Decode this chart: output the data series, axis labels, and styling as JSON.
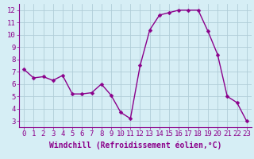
{
  "x": [
    0,
    1,
    2,
    3,
    4,
    5,
    6,
    7,
    8,
    9,
    10,
    11,
    12,
    13,
    14,
    15,
    16,
    17,
    18,
    19,
    20,
    21,
    22,
    23
  ],
  "y": [
    7.2,
    6.5,
    6.6,
    6.3,
    6.7,
    5.2,
    5.2,
    5.3,
    6.0,
    5.1,
    3.7,
    3.2,
    7.5,
    10.4,
    11.6,
    11.8,
    12.0,
    12.0,
    12.0,
    10.3,
    8.4,
    5.0,
    4.5,
    3.0
  ],
  "line_color": "#8b008b",
  "marker_color": "#8b008b",
  "bg_color": "#d6eef5",
  "grid_color": "#b0cdd8",
  "xlabel": "Windchill (Refroidissement éolien,°C)",
  "xlim": [
    -0.5,
    23.5
  ],
  "ylim": [
    2.5,
    12.5
  ],
  "xticks": [
    0,
    1,
    2,
    3,
    4,
    5,
    6,
    7,
    8,
    9,
    10,
    11,
    12,
    13,
    14,
    15,
    16,
    17,
    18,
    19,
    20,
    21,
    22,
    23
  ],
  "yticks": [
    3,
    4,
    5,
    6,
    7,
    8,
    9,
    10,
    11,
    12
  ],
  "xlabel_fontsize": 7.0,
  "tick_fontsize": 6.5,
  "marker_size": 2.5,
  "line_width": 1.0
}
